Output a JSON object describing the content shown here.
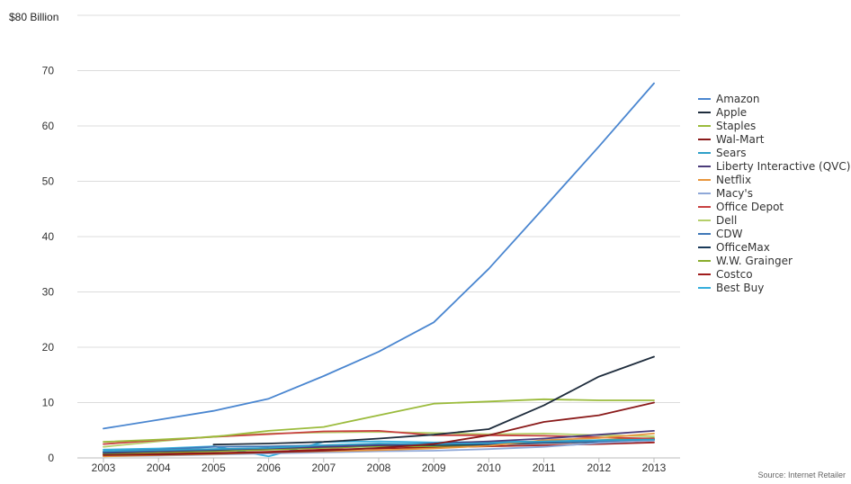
{
  "chart_data": {
    "type": "line",
    "title": "",
    "ylabel": "$80 Billion",
    "xlabel": "",
    "source": "Source: Internet Retailer",
    "categories": [
      "2003",
      "2004",
      "2005",
      "2006",
      "2007",
      "2008",
      "2009",
      "2010",
      "2011",
      "2012",
      "2013"
    ],
    "y_ticks": [
      "0",
      "10",
      "20",
      "30",
      "40",
      "50",
      "60",
      "70"
    ],
    "ylim": [
      0,
      80
    ],
    "grid": true,
    "legend_position": "right",
    "series": [
      {
        "name": "Amazon",
        "color": "#4a86d0",
        "values": [
          5.3,
          6.9,
          8.5,
          10.7,
          14.8,
          19.2,
          24.5,
          34.2,
          45.2,
          56.3,
          67.7
        ]
      },
      {
        "name": "Apple",
        "color": "#1f2d3d",
        "values": [
          null,
          null,
          2.4,
          2.6,
          2.9,
          3.5,
          4.2,
          5.2,
          9.5,
          14.7,
          18.3
        ]
      },
      {
        "name": "Staples",
        "color": "#9bbb3c",
        "values": [
          2.9,
          3.3,
          3.8,
          4.9,
          5.6,
          7.7,
          9.8,
          10.2,
          10.6,
          10.4,
          10.4
        ]
      },
      {
        "name": "Wal-Mart",
        "color": "#8a1a1a",
        "values": [
          0.5,
          0.6,
          0.8,
          1.0,
          1.3,
          1.8,
          2.5,
          4.1,
          6.5,
          7.7,
          10.0
        ]
      },
      {
        "name": "Sears",
        "color": "#2fa0c8",
        "values": [
          1.2,
          1.4,
          1.6,
          1.8,
          2.3,
          2.6,
          2.5,
          2.7,
          3.0,
          3.2,
          3.3
        ]
      },
      {
        "name": "Liberty Interactive (QVC)",
        "color": "#4b3b7a",
        "values": [
          1.0,
          1.2,
          1.5,
          1.7,
          2.0,
          2.3,
          2.6,
          3.0,
          3.5,
          4.2,
          4.9
        ]
      },
      {
        "name": "Netflix",
        "color": "#e8963c",
        "values": [
          0.3,
          0.5,
          0.7,
          1.0,
          1.2,
          1.4,
          1.7,
          2.2,
          3.2,
          3.6,
          4.4
        ]
      },
      {
        "name": "Macy's",
        "color": "#8fa8d8",
        "values": [
          0.3,
          0.4,
          0.6,
          0.8,
          1.0,
          1.2,
          1.3,
          1.6,
          2.0,
          2.7,
          3.1
        ]
      },
      {
        "name": "Office Depot",
        "color": "#c84040",
        "values": [
          2.5,
          3.2,
          3.8,
          4.3,
          4.8,
          4.9,
          4.1,
          4.1,
          4.0,
          3.7,
          3.5
        ]
      },
      {
        "name": "Dell",
        "color": "#b5cf6a",
        "values": [
          2.0,
          3.0,
          3.9,
          4.4,
          4.6,
          4.7,
          4.5,
          4.3,
          4.4,
          4.1,
          3.9
        ]
      },
      {
        "name": "CDW",
        "color": "#3f78b8",
        "values": [
          1.2,
          1.5,
          2.0,
          2.1,
          2.3,
          2.5,
          2.6,
          2.6,
          2.9,
          3.0,
          3.4
        ]
      },
      {
        "name": "OfficeMax",
        "color": "#1a3a5a",
        "values": [
          0.9,
          1.2,
          1.4,
          1.8,
          2.1,
          2.3,
          2.3,
          2.4,
          2.7,
          2.9,
          3.3
        ]
      },
      {
        "name": "W.W. Grainger",
        "color": "#8aad2c",
        "values": [
          0.8,
          1.0,
          1.2,
          1.5,
          1.8,
          2.1,
          2.1,
          2.4,
          2.8,
          3.2,
          3.6
        ]
      },
      {
        "name": "Costco",
        "color": "#a01c1c",
        "values": [
          0.6,
          0.8,
          0.9,
          1.1,
          1.5,
          1.7,
          1.9,
          2.1,
          2.3,
          2.5,
          2.8
        ]
      },
      {
        "name": "Best Buy",
        "color": "#35aedc",
        "values": [
          1.5,
          1.7,
          2.1,
          0.3,
          2.9,
          3.0,
          2.8,
          2.9,
          3.0,
          3.0,
          3.2
        ]
      }
    ]
  }
}
